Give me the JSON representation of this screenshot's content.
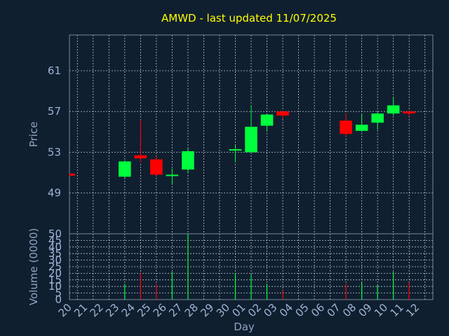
{
  "chart_data": [
    {
      "type": "candlestick",
      "title": "AMWD - last updated 11/07/2025",
      "ylabel": "Price",
      "xlabel": "Day",
      "ylim": [
        45.0,
        64.5
      ],
      "yticks": [
        49,
        53,
        57,
        61
      ],
      "categories": [
        "20",
        "21",
        "22",
        "23",
        "24",
        "25",
        "26",
        "27",
        "28",
        "29",
        "30",
        "01",
        "02",
        "03",
        "04",
        "05",
        "06",
        "07",
        "08",
        "09",
        "10",
        "11",
        "12"
      ],
      "grid": true,
      "candles": [
        {
          "x": 0,
          "open": 50.9,
          "close": 50.7,
          "high": 50.9,
          "low": 50.7
        },
        {
          "x": 3,
          "open": 50.6,
          "close": 52.1,
          "high": 52.2,
          "low": 50.5
        },
        {
          "x": 4,
          "open": 52.7,
          "close": 52.4,
          "high": 56.2,
          "low": 52.0
        },
        {
          "x": 5,
          "open": 52.3,
          "close": 50.8,
          "high": 52.6,
          "low": 50.7
        },
        {
          "x": 6,
          "open": 50.7,
          "close": 50.8,
          "high": 51.4,
          "low": 49.9
        },
        {
          "x": 7,
          "open": 51.3,
          "close": 53.1,
          "high": 53.4,
          "low": 51.0
        },
        {
          "x": 10,
          "open": 53.2,
          "close": 53.3,
          "high": 53.7,
          "low": 52.0
        },
        {
          "x": 11,
          "open": 53.0,
          "close": 55.5,
          "high": 57.6,
          "low": 53.0
        },
        {
          "x": 12,
          "open": 55.6,
          "close": 56.7,
          "high": 56.7,
          "low": 55.1
        },
        {
          "x": 13,
          "open": 57.0,
          "close": 56.6,
          "high": 57.1,
          "low": 56.3
        },
        {
          "x": 17,
          "open": 56.1,
          "close": 54.8,
          "high": 56.8,
          "low": 54.5
        },
        {
          "x": 18,
          "open": 55.1,
          "close": 55.7,
          "high": 56.7,
          "low": 55.0
        },
        {
          "x": 19,
          "open": 55.9,
          "close": 56.8,
          "high": 57.0,
          "low": 55.2
        },
        {
          "x": 20,
          "open": 56.8,
          "close": 57.6,
          "high": 58.4,
          "low": 56.6
        },
        {
          "x": 21,
          "open": 57.0,
          "close": 56.8,
          "high": 57.1,
          "low": 56.5
        }
      ]
    },
    {
      "type": "bar",
      "ylabel": "Volume (0000)",
      "xlabel": "Day",
      "ylim": [
        0,
        50
      ],
      "yticks": [
        0,
        5,
        10,
        15,
        20,
        25,
        30,
        35,
        40,
        45,
        50
      ],
      "categories": [
        "20",
        "21",
        "22",
        "23",
        "24",
        "25",
        "26",
        "27",
        "28",
        "29",
        "30",
        "01",
        "02",
        "03",
        "04",
        "05",
        "06",
        "07",
        "08",
        "09",
        "10",
        "11",
        "12"
      ],
      "bars": [
        {
          "x": 3,
          "value": 12,
          "direction": "up"
        },
        {
          "x": 4,
          "value": 20,
          "direction": "down"
        },
        {
          "x": 5,
          "value": 12,
          "direction": "down"
        },
        {
          "x": 6,
          "value": 21,
          "direction": "up"
        },
        {
          "x": 7,
          "value": 50,
          "direction": "up"
        },
        {
          "x": 10,
          "value": 20,
          "direction": "up"
        },
        {
          "x": 11,
          "value": 19,
          "direction": "up"
        },
        {
          "x": 12,
          "value": 12,
          "direction": "up"
        },
        {
          "x": 13,
          "value": 7,
          "direction": "down"
        },
        {
          "x": 17,
          "value": 12,
          "direction": "down"
        },
        {
          "x": 18,
          "value": 13,
          "direction": "up"
        },
        {
          "x": 19,
          "value": 11,
          "direction": "up"
        },
        {
          "x": 20,
          "value": 21,
          "direction": "up"
        },
        {
          "x": 21,
          "value": 13,
          "direction": "down"
        }
      ]
    }
  ],
  "colors": {
    "background": "#0f1f30",
    "up": "#00ff3c",
    "down": "#ff0000",
    "title": "#ffff00",
    "axis_text": "#9fb4d4",
    "grid": "#d8dde6"
  }
}
